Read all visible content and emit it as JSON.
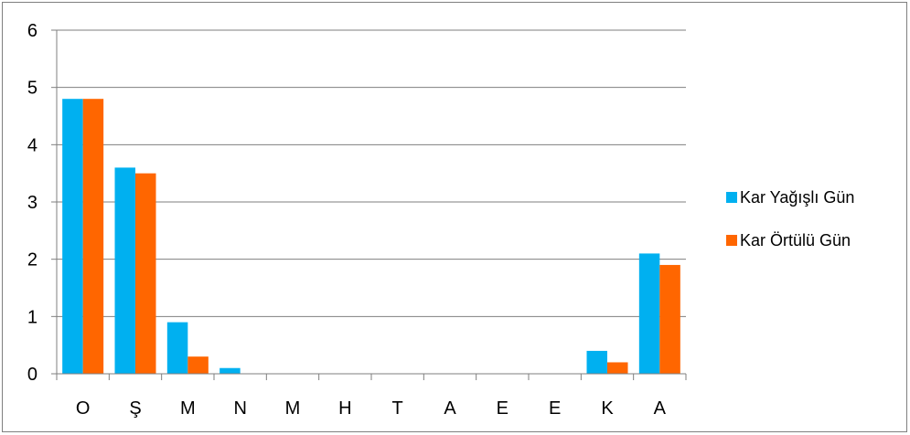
{
  "chart_data": {
    "type": "bar",
    "categories": [
      "O",
      "Ş",
      "M",
      "N",
      "M",
      "H",
      "T",
      "A",
      "E",
      "E",
      "K",
      "A"
    ],
    "series": [
      {
        "name": "Kar Yağışlı Gün",
        "color": "#00b0f0",
        "values": [
          4.8,
          3.6,
          0.9,
          0.1,
          0,
          0,
          0,
          0,
          0,
          0,
          0.4,
          2.1
        ]
      },
      {
        "name": "Kar Örtülü Gün",
        "color": "#ff6600",
        "values": [
          4.8,
          3.5,
          0.3,
          0,
          0,
          0,
          0,
          0,
          0,
          0,
          0.2,
          1.9
        ]
      }
    ],
    "ylim": [
      0,
      6
    ],
    "yticks": [
      "0",
      "1",
      "2",
      "3",
      "4",
      "5",
      "6"
    ],
    "grid": true,
    "legend_position": "right"
  },
  "colors": {
    "gridline": "#7f7f7f",
    "axis": "#7f7f7f"
  }
}
